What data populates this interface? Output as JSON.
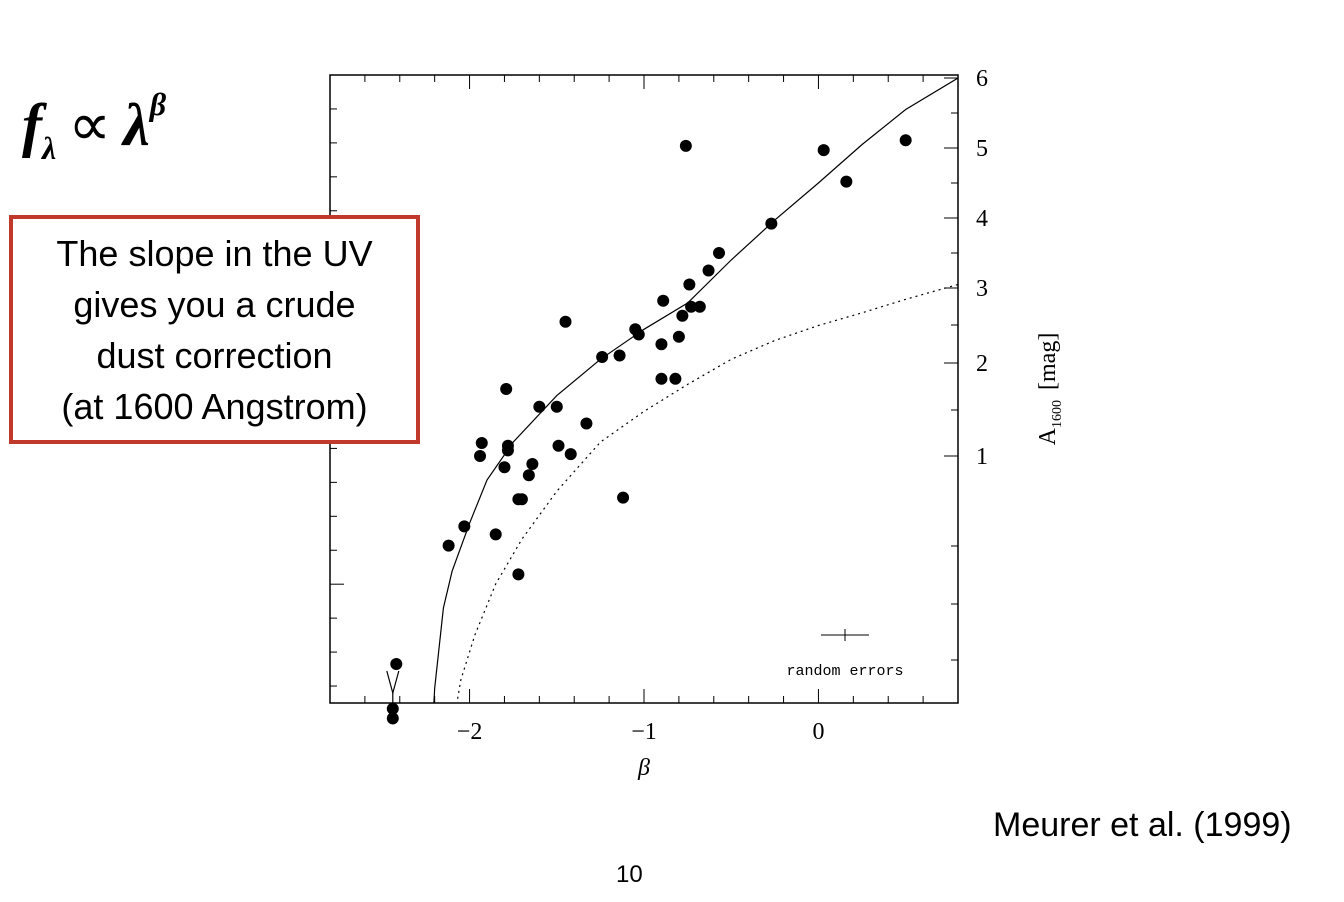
{
  "formula": {
    "base": "f",
    "sub": "λ",
    "prop": "∝",
    "lambda": "λ",
    "sup": "β"
  },
  "callout": {
    "lines": [
      "The slope in the UV",
      "gives you a crude",
      "dust correction",
      "(at 1600 Angstrom)"
    ],
    "border_color": "#c0392b"
  },
  "citation": "Meurer et al. (1999)",
  "page_number": "10",
  "chart_data": {
    "type": "scatter",
    "xlabel": "β",
    "ylabel": "A1600 [mag]",
    "ylabel_main": "A",
    "ylabel_sub": "1600",
    "ylabel_unit": "[mag]",
    "xlim": [
      -2.8,
      0.8
    ],
    "x_ticks": [
      {
        "value": -2,
        "label": "−2"
      },
      {
        "value": -1,
        "label": "−1"
      },
      {
        "value": 0,
        "label": "0"
      }
    ],
    "y_ticks_right": [
      {
        "value": 1,
        "label": "1"
      },
      {
        "value": 2,
        "label": "2"
      },
      {
        "value": 3,
        "label": "3"
      },
      {
        "value": 4,
        "label": "4"
      },
      {
        "value": 5,
        "label": "5"
      },
      {
        "value": 6,
        "label": "6"
      }
    ],
    "annotation": "random errors",
    "upper_limit_at_x": -2.44,
    "series": [
      {
        "style": "points",
        "points": [
          [
            -0.76,
            5.03
          ],
          [
            0.03,
            4.97
          ],
          [
            0.5,
            5.11
          ],
          [
            0.16,
            4.52
          ],
          [
            -0.27,
            3.92
          ],
          [
            -0.57,
            3.5
          ],
          [
            -0.63,
            3.25
          ],
          [
            -0.74,
            3.05
          ],
          [
            -0.89,
            2.83
          ],
          [
            -0.68,
            2.75
          ],
          [
            -0.73,
            2.75
          ],
          [
            -0.78,
            2.63
          ],
          [
            -1.45,
            2.55
          ],
          [
            -1.05,
            2.45
          ],
          [
            -1.03,
            2.38
          ],
          [
            -0.8,
            2.35
          ],
          [
            -0.9,
            2.25
          ],
          [
            -1.14,
            2.1
          ],
          [
            -1.24,
            2.08
          ],
          [
            -0.9,
            1.83
          ],
          [
            -0.82,
            1.83
          ],
          [
            -1.79,
            1.72
          ],
          [
            -1.6,
            1.53
          ],
          [
            -1.5,
            1.53
          ],
          [
            -1.33,
            1.35
          ],
          [
            -1.93,
            1.14
          ],
          [
            -1.49,
            1.11
          ],
          [
            -1.78,
            1.11
          ],
          [
            -1.78,
            1.06
          ],
          [
            -1.94,
            1.0
          ],
          [
            -1.42,
            1.02
          ],
          [
            -1.8,
            0.93
          ],
          [
            -1.64,
            0.95
          ],
          [
            -1.66,
            0.88
          ],
          [
            -1.72,
            0.73
          ],
          [
            -1.7,
            0.73
          ],
          [
            -1.12,
            0.74
          ],
          [
            -2.03,
            0.56
          ],
          [
            -2.12,
            0.44
          ],
          [
            -1.85,
            0.51
          ],
          [
            -1.72,
            0.26
          ],
          [
            -2.42,
            -0.3
          ],
          [
            -2.44,
            -0.58
          ],
          [
            -2.44,
            -0.64
          ]
        ]
      },
      {
        "style": "solid",
        "points": [
          [
            -2.22,
            -0.85
          ],
          [
            -2.2,
            -0.45
          ],
          [
            -2.15,
            0.05
          ],
          [
            -2.1,
            0.28
          ],
          [
            -2.0,
            0.58
          ],
          [
            -1.9,
            0.85
          ],
          [
            -1.75,
            1.15
          ],
          [
            -1.5,
            1.65
          ],
          [
            -1.25,
            2.05
          ],
          [
            -1.0,
            2.45
          ],
          [
            -0.75,
            2.8
          ],
          [
            -0.5,
            3.4
          ],
          [
            -0.25,
            3.97
          ],
          [
            0.0,
            4.5
          ],
          [
            0.25,
            5.05
          ],
          [
            0.5,
            5.55
          ],
          [
            0.8,
            6.0
          ]
        ]
      },
      {
        "style": "dotted",
        "points": [
          [
            -2.12,
            -0.85
          ],
          [
            -2.05,
            -0.4
          ],
          [
            -1.97,
            -0.12
          ],
          [
            -1.85,
            0.2
          ],
          [
            -1.7,
            0.48
          ],
          [
            -1.5,
            0.78
          ],
          [
            -1.25,
            1.15
          ],
          [
            -1.0,
            1.48
          ],
          [
            -0.75,
            1.77
          ],
          [
            -0.5,
            2.05
          ],
          [
            -0.25,
            2.3
          ],
          [
            0.0,
            2.5
          ],
          [
            0.25,
            2.67
          ],
          [
            0.5,
            2.85
          ],
          [
            0.8,
            3.05
          ]
        ]
      }
    ]
  }
}
